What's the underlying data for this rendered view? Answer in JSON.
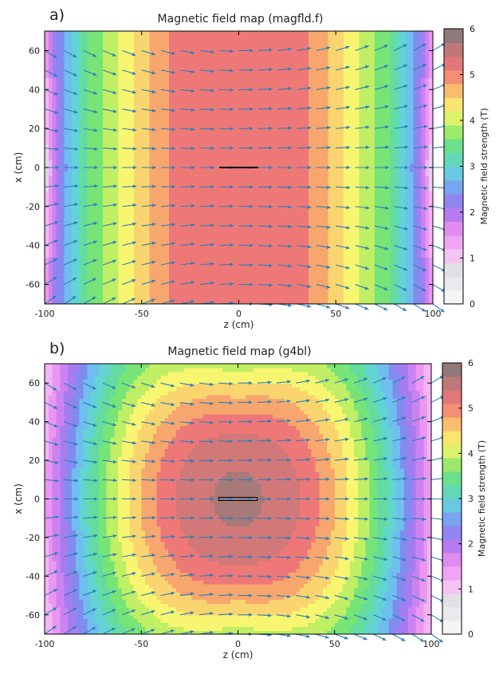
{
  "chart_data": [
    {
      "type": "heatmap",
      "panel_label": "a)",
      "title": "Magnetic field map (magfld.f)",
      "xlabel": "z (cm)",
      "ylabel": "x (cm)",
      "xlim": [
        -100,
        100
      ],
      "ylim": [
        -70,
        70
      ],
      "x_ticks": [
        "-100",
        "-50",
        "0",
        "50",
        "100"
      ],
      "y_ticks": [
        "-60",
        "-40",
        "-20",
        "0",
        "20",
        "40",
        "60"
      ],
      "colorbar": {
        "label": "Magnetic field strength (T)",
        "range": [
          0,
          6
        ],
        "ticks": [
          "0",
          "1",
          "2",
          "3",
          "4",
          "5",
          "6"
        ]
      },
      "field_model": "solenoid",
      "center_feature": "line",
      "max_field_T": 5.2,
      "arrow_color": "#2e7fb5"
    },
    {
      "type": "heatmap",
      "panel_label": "b)",
      "title": "Magnetic field map (g4bl)",
      "xlabel": "z (cm)",
      "ylabel": "x (cm)",
      "xlim": [
        -100,
        100
      ],
      "ylim": [
        -70,
        70
      ],
      "x_ticks": [
        "-100",
        "-50",
        "0",
        "50",
        "100"
      ],
      "y_ticks": [
        "-60",
        "-40",
        "-20",
        "0",
        "20",
        "40",
        "60"
      ],
      "colorbar": {
        "label": "Magnetic field strength (T)",
        "range": [
          0,
          6
        ],
        "ticks": [
          "0",
          "1",
          "2",
          "3",
          "4",
          "5",
          "6"
        ]
      },
      "field_model": "coil",
      "center_feature": "box",
      "max_field_T": 5.6,
      "arrow_color": "#2e7fb5"
    }
  ]
}
